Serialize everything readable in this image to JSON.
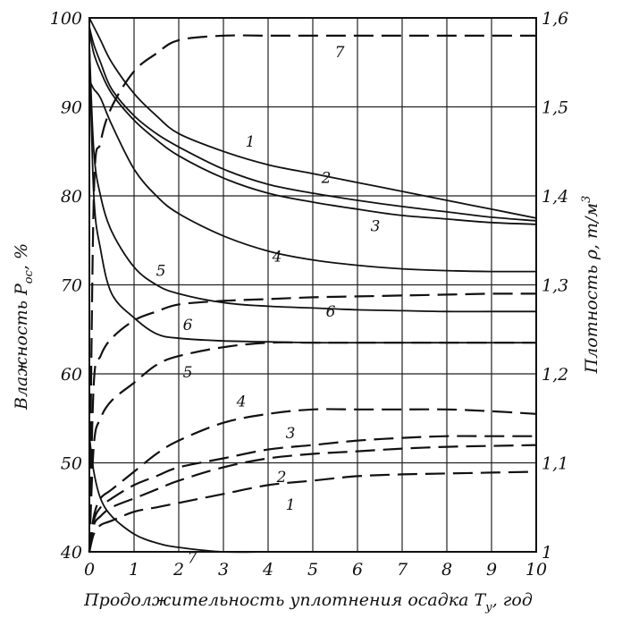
{
  "chart_data": {
    "type": "line",
    "xlabel": "Продолжительность уплотнения осадка T",
    "xlabel_sub": "у",
    "xlabel_unit": ", год",
    "ylabel_left": "Влажность P",
    "ylabel_left_sub": "ос",
    "ylabel_left_unit": ", %",
    "ylabel_right": "Плотность ρ, т/м",
    "ylabel_right_sup": "3",
    "xlim": [
      0,
      10
    ],
    "ylim_left": [
      40,
      100
    ],
    "ylim_right": [
      1.0,
      1.6
    ],
    "x_ticks": [
      "0",
      "1",
      "2",
      "3",
      "4",
      "5",
      "6",
      "7",
      "8",
      "9",
      "10"
    ],
    "y_left_ticks": [
      "40",
      "50",
      "60",
      "70",
      "80",
      "90",
      "100"
    ],
    "y_right_ticks": [
      "1",
      "1,1",
      "1,2",
      "1,3",
      "1,4",
      "1,5",
      "1,6"
    ],
    "grid": true,
    "x": [
      0,
      0.1,
      0.25,
      0.5,
      1,
      1.5,
      2,
      3,
      4,
      5,
      6,
      7,
      8,
      9,
      10
    ],
    "moisture_series": [
      {
        "label": "1",
        "axis": "left",
        "style": "solid",
        "values": [
          100,
          99,
          97.5,
          95,
          91.5,
          89,
          87,
          85,
          83.5,
          82.5,
          81.5,
          80.5,
          79.5,
          78.5,
          77.5
        ]
      },
      {
        "label": "2",
        "axis": "left",
        "style": "solid",
        "values": [
          99,
          97,
          95,
          92,
          89,
          87,
          85.5,
          83,
          81.3,
          80.3,
          79.5,
          78.8,
          78.2,
          77.6,
          77.2
        ]
      },
      {
        "label": "3",
        "axis": "left",
        "style": "solid",
        "values": [
          98.5,
          96,
          94,
          91.5,
          88.5,
          86.3,
          84.5,
          82,
          80.3,
          79.3,
          78.5,
          77.8,
          77.4,
          77,
          76.8
        ]
      },
      {
        "label": "4",
        "axis": "left",
        "style": "solid",
        "values": [
          93,
          92,
          91,
          88,
          83,
          80,
          78,
          75.5,
          73.8,
          72.8,
          72.2,
          71.8,
          71.6,
          71.5,
          71.5
        ]
      },
      {
        "label": "5",
        "axis": "left",
        "style": "solid",
        "values": [
          97,
          85,
          80,
          76,
          72,
          70,
          69,
          68,
          67.6,
          67.4,
          67.2,
          67.1,
          67,
          67,
          67
        ]
      },
      {
        "label": "6",
        "axis": "left",
        "style": "solid",
        "values": [
          97,
          80,
          74,
          69,
          66.3,
          64.5,
          64,
          63.7,
          63.6,
          63.5,
          63.5,
          63.5,
          63.5,
          63.5,
          63.5
        ]
      },
      {
        "label": "7",
        "axis": "left",
        "style": "solid",
        "values": [
          53,
          49,
          46,
          44,
          42,
          41,
          40.5,
          40,
          40,
          40,
          40,
          40,
          40,
          40,
          40
        ]
      }
    ],
    "density_series": [
      {
        "label": "1",
        "axis": "right",
        "style": "dashed",
        "values": [
          1.0,
          1.02,
          1.03,
          1.035,
          1.045,
          1.05,
          1.055,
          1.065,
          1.075,
          1.08,
          1.085,
          1.087,
          1.088,
          1.089,
          1.09
        ]
      },
      {
        "label": "2",
        "axis": "right",
        "style": "dashed",
        "values": [
          1.0,
          1.03,
          1.04,
          1.05,
          1.06,
          1.07,
          1.08,
          1.095,
          1.105,
          1.11,
          1.113,
          1.116,
          1.118,
          1.119,
          1.12
        ]
      },
      {
        "label": "3",
        "axis": "right",
        "style": "dashed",
        "values": [
          1.0,
          1.035,
          1.05,
          1.06,
          1.075,
          1.085,
          1.095,
          1.105,
          1.115,
          1.12,
          1.125,
          1.128,
          1.13,
          1.13,
          1.13
        ]
      },
      {
        "label": "4",
        "axis": "right",
        "style": "dashed",
        "values": [
          1.0,
          1.04,
          1.06,
          1.07,
          1.09,
          1.11,
          1.125,
          1.145,
          1.155,
          1.16,
          1.16,
          1.16,
          1.16,
          1.158,
          1.155
        ]
      },
      {
        "label": "5",
        "axis": "right",
        "style": "dashed",
        "values": [
          1.0,
          1.12,
          1.15,
          1.17,
          1.19,
          1.21,
          1.22,
          1.23,
          1.235,
          1.235,
          1.235,
          1.235,
          1.235,
          1.235,
          1.235
        ]
      },
      {
        "label": "6",
        "axis": "right",
        "style": "dashed",
        "values": [
          1.0,
          1.19,
          1.22,
          1.24,
          1.26,
          1.27,
          1.278,
          1.282,
          1.284,
          1.286,
          1.287,
          1.288,
          1.289,
          1.29,
          1.29
        ]
      },
      {
        "label": "7",
        "axis": "right",
        "style": "dashed",
        "values": [
          1.0,
          1.4,
          1.46,
          1.5,
          1.54,
          1.56,
          1.575,
          1.58,
          1.58,
          1.58,
          1.58,
          1.58,
          1.58,
          1.58,
          1.58
        ]
      }
    ]
  }
}
